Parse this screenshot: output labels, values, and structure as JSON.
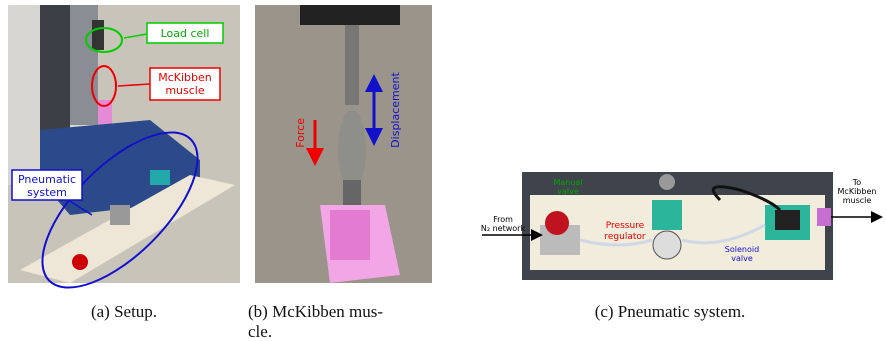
{
  "panels": [
    {
      "caption_lines": [
        "(a) Setup."
      ],
      "annotations": {
        "load_cell": [
          "Load cell"
        ],
        "muscle": [
          "McKibben",
          "muscle"
        ],
        "pneumatic": [
          "Pneumatic",
          "system"
        ]
      }
    },
    {
      "caption_lines": [
        "(b) McKibben mus-",
        "cle."
      ],
      "annotations": {
        "force": "Force",
        "displacement": "Displacement"
      }
    },
    {
      "caption_lines": [
        "(c) Pneumatic system."
      ],
      "annotations": {
        "manual_valve": [
          "Manual",
          "valve"
        ],
        "pressure_regulator": [
          "Pressure",
          "regulator"
        ],
        "solenoid_valve": [
          "Solenoid",
          "valve"
        ],
        "from": [
          "From",
          "N₂ network"
        ],
        "to": [
          "To",
          "McKibben",
          "muscle"
        ]
      }
    }
  ]
}
